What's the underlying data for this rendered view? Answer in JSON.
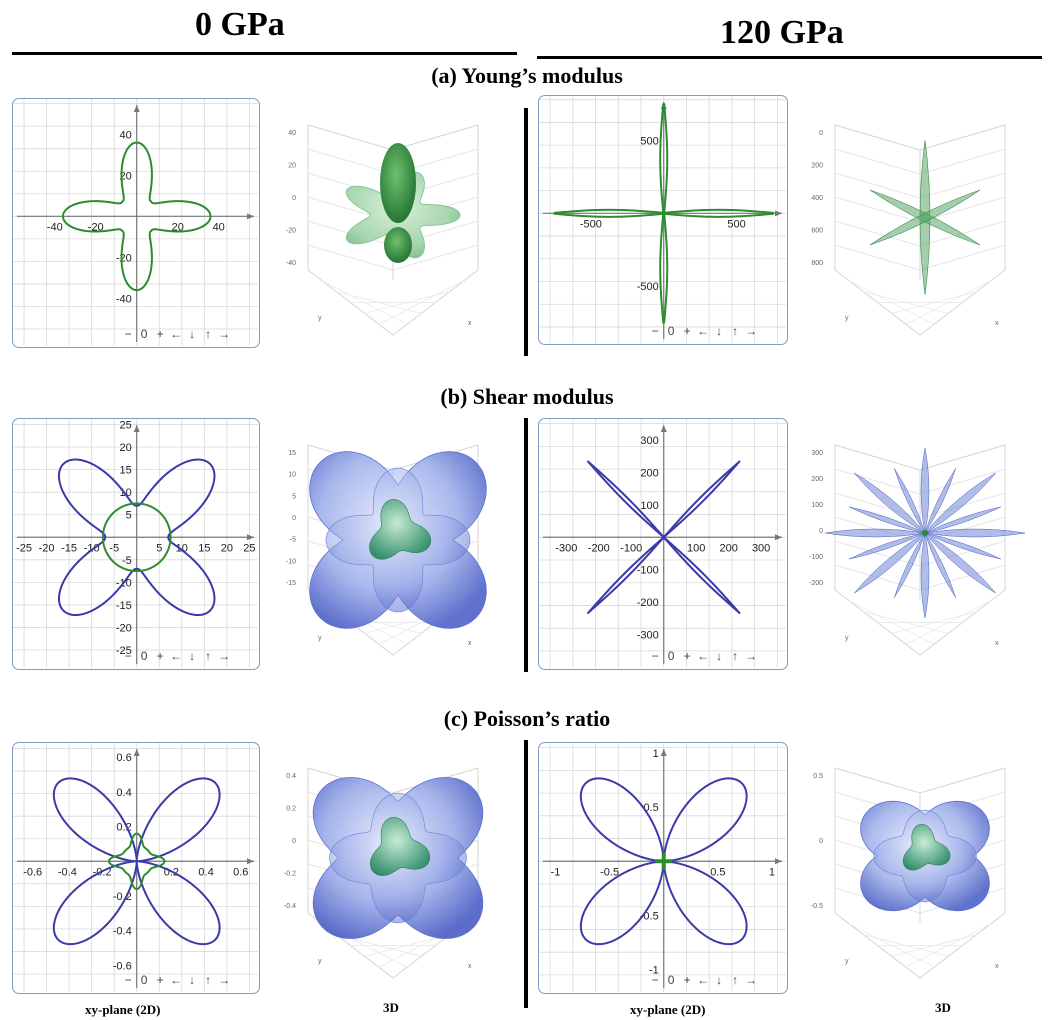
{
  "columns": [
    {
      "label": "0 GPa"
    },
    {
      "label": "120 GPa"
    }
  ],
  "rows": [
    {
      "label": "(a) Young’s modulus"
    },
    {
      "label": "(b) Shear modulus"
    },
    {
      "label": "(c) Poisson’s ratio"
    }
  ],
  "footer": {
    "left_2d": "xy-plane (2D)",
    "left_3d": "3D",
    "right_2d": "xy-plane (2D)",
    "right_3d": "3D"
  },
  "plot_controls": [
    "−",
    "0",
    "+",
    "←",
    "↓",
    "↑",
    "→"
  ],
  "colors": {
    "green": "#2e8b2e",
    "blue": "#3a3aa8",
    "panel_border": "#7f9cc4",
    "grid": "#d9d9d9",
    "surface_green": "#5aa56a",
    "surface_blue": "#6f86d6"
  },
  "chart_data": [
    {
      "type": "line",
      "name": "young-0gpa-2d",
      "row": "(a)",
      "pressure": "0 GPa",
      "shape": "rosette",
      "a": 10,
      "b": 36,
      "ticks": [
        -40,
        -20,
        20,
        40
      ],
      "range": [
        -55,
        55
      ],
      "series": [
        {
          "color": "green",
          "kind": "rosette"
        }
      ]
    },
    {
      "type": "line",
      "name": "young-120gpa-2d",
      "row": "(a)",
      "pressure": "120 GPa",
      "shape": "spike",
      "spike_max": 750,
      "range": [
        -780,
        780
      ],
      "ticks": [
        -500,
        500
      ],
      "series": [
        {
          "color": "green",
          "kind": "spike"
        }
      ]
    },
    {
      "type": "line",
      "name": "shear-0gpa-2d",
      "row": "(b)",
      "pressure": "0 GPa",
      "range": [
        -25,
        25
      ],
      "ticks": [
        -25,
        -20,
        -15,
        -10,
        -5,
        5,
        10,
        15,
        20,
        25
      ],
      "series": [
        {
          "color": "blue",
          "kind": "clover",
          "r_max": 23,
          "r_min": 7
        },
        {
          "color": "green",
          "kind": "circle",
          "r": 7.5
        }
      ]
    },
    {
      "type": "line",
      "name": "shear-120gpa-2d",
      "row": "(b)",
      "pressure": "120 GPa",
      "range": [
        -350,
        350
      ],
      "ticks": [
        -300,
        -200,
        -100,
        100,
        200,
        300
      ],
      "series": [
        {
          "color": "blue",
          "kind": "diag-spike",
          "r_max": 330
        }
      ]
    },
    {
      "type": "line",
      "name": "poisson-0gpa-2d",
      "row": "(c)",
      "pressure": "0 GPa",
      "range": [
        -0.65,
        0.65
      ],
      "ticks": [
        -0.6,
        -0.4,
        -0.2,
        0.2,
        0.4,
        0.6
      ],
      "series": [
        {
          "color": "blue",
          "kind": "diag-lobe",
          "r_max": 0.64
        },
        {
          "color": "green",
          "kind": "small-rosette",
          "a": 0.09,
          "b": 0.07
        }
      ]
    },
    {
      "type": "line",
      "name": "poisson-120gpa-2d",
      "row": "(c)",
      "pressure": "120 GPa",
      "range": [
        -1.05,
        1.05
      ],
      "ticks": [
        -1,
        -0.5,
        0.5,
        1
      ],
      "series": [
        {
          "color": "blue",
          "kind": "quad-lobe",
          "r_max": 1.02
        },
        {
          "color": "green",
          "kind": "small-cross",
          "r": 0.08
        }
      ]
    }
  ],
  "axis_3d": {
    "young_0": [
      "40",
      "20",
      "0",
      "-20",
      "-40"
    ],
    "young_120": [
      "0",
      "200",
      "400",
      "600",
      "800"
    ],
    "shear_0": [
      "15",
      "10",
      "5",
      "0",
      "-5",
      "-10",
      "-15"
    ],
    "shear_120": [
      "300",
      "200",
      "100",
      "0",
      "-100",
      "-200"
    ],
    "poisson_0": [
      "0.4",
      "0.2",
      "0",
      "-0.2",
      "-0.4"
    ],
    "poisson_120": [
      "0.5",
      "0",
      "-0.5"
    ]
  }
}
